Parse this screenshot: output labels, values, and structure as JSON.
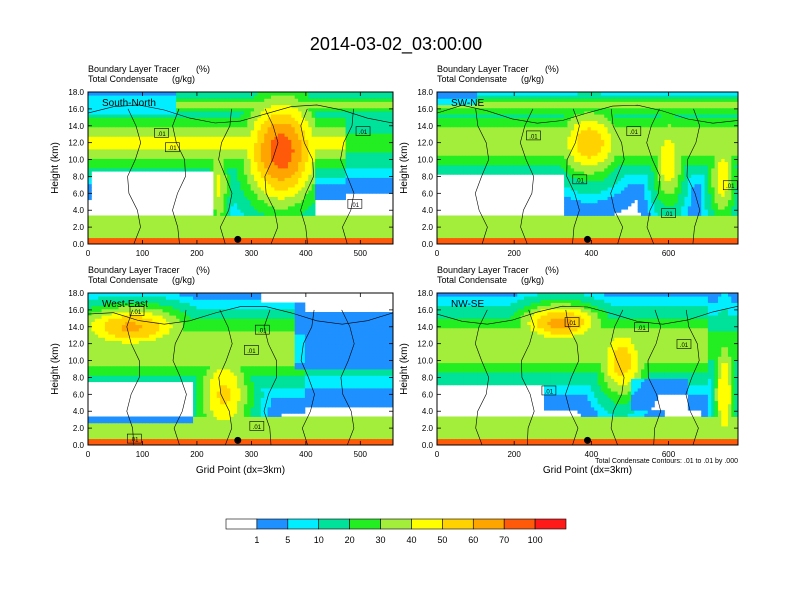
{
  "figure_title": "2014-03-02_03:00:00",
  "panel_header": {
    "line1": "Boundary Layer Tracer",
    "line1_unit": "(%)",
    "line2": "Total Condensate",
    "line2_unit": "(g/kg)"
  },
  "y_axis_label": "Height (km)",
  "x_axis_label": "Grid Point (dx=3km)",
  "contour_note": "Total Condensate Contours: .01 to .01 by .000",
  "contour_label": ".01",
  "colors": {
    "bins": [
      "#ffffff",
      "#1e90ff",
      "#00eeff",
      "#00e19a",
      "#22ee22",
      "#a2ee3a",
      "#ffff00",
      "#ffd200",
      "#ffa500",
      "#ff5a0a",
      "#ff1a1a"
    ]
  },
  "chart_data": [
    {
      "type": "heatmap",
      "cross_section": "South-North",
      "x_ticks": [
        "0",
        "100",
        "200",
        "300",
        "400",
        "500"
      ],
      "xlim": [
        0,
        560
      ],
      "y_ticks": [
        "0.0",
        "2.0",
        "4.0",
        "6.0",
        "8.0",
        "10.0",
        "12.0",
        "14.0",
        "16.0",
        "18.0"
      ],
      "ylim": [
        0,
        18
      ],
      "marker_x": 275,
      "contour_label_positions": [
        [
          135,
          13.1
        ],
        [
          155,
          11.4
        ],
        [
          505,
          13.3
        ],
        [
          490,
          4.7
        ]
      ]
    },
    {
      "type": "heatmap",
      "cross_section": "SW-NE",
      "x_ticks": [
        "0",
        "200",
        "400",
        "600"
      ],
      "xlim": [
        0,
        780
      ],
      "y_ticks": [
        "0.0",
        "2.0",
        "4.0",
        "6.0",
        "8.0",
        "10.0",
        "12.0",
        "14.0",
        "16.0",
        "18.0"
      ],
      "ylim": [
        0,
        18
      ],
      "marker_x": 390,
      "contour_label_positions": [
        [
          250,
          12.8
        ],
        [
          510,
          13.3
        ],
        [
          370,
          7.6
        ],
        [
          600,
          3.6
        ],
        [
          760,
          6.9
        ]
      ]
    },
    {
      "type": "heatmap",
      "cross_section": "West-East",
      "x_ticks": [
        "0",
        "100",
        "200",
        "300",
        "400",
        "500"
      ],
      "xlim": [
        0,
        560
      ],
      "y_ticks": [
        "0.0",
        "2.0",
        "4.0",
        "6.0",
        "8.0",
        "10.0",
        "12.0",
        "14.0",
        "16.0",
        "18.0"
      ],
      "ylim": [
        0,
        18
      ],
      "marker_x": 275,
      "contour_label_positions": [
        [
          90,
          15.8
        ],
        [
          320,
          13.6
        ],
        [
          300,
          11.2
        ],
        [
          310,
          2.2
        ],
        [
          85,
          0.7
        ]
      ]
    },
    {
      "type": "heatmap",
      "cross_section": "NW-SE",
      "x_ticks": [
        "0",
        "200",
        "400",
        "600"
      ],
      "xlim": [
        0,
        780
      ],
      "y_ticks": [
        "0.0",
        "2.0",
        "4.0",
        "6.0",
        "8.0",
        "10.0",
        "12.0",
        "14.0",
        "16.0",
        "18.0"
      ],
      "ylim": [
        0,
        18
      ],
      "marker_x": 390,
      "contour_label_positions": [
        [
          350,
          14.5
        ],
        [
          530,
          13.9
        ],
        [
          640,
          11.9
        ],
        [
          290,
          6.4
        ]
      ]
    }
  ],
  "colorbar": {
    "labels": [
      "1",
      "5",
      "10",
      "20",
      "30",
      "40",
      "50",
      "60",
      "70",
      "100"
    ]
  }
}
